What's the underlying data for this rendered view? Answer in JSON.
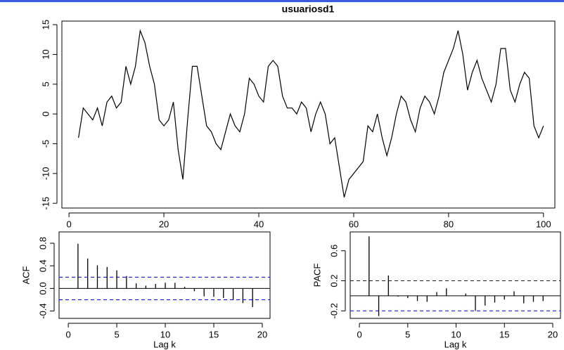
{
  "chart_data": [
    {
      "type": "line",
      "title": "usuariosd1",
      "color": "#000000",
      "x": [
        2,
        3,
        4,
        5,
        6,
        7,
        8,
        9,
        10,
        11,
        12,
        13,
        14,
        15,
        16,
        17,
        18,
        19,
        20,
        21,
        22,
        23,
        24,
        25,
        26,
        27,
        28,
        29,
        30,
        31,
        32,
        33,
        34,
        35,
        36,
        37,
        38,
        39,
        40,
        41,
        42,
        43,
        44,
        45,
        46,
        47,
        48,
        49,
        50,
        51,
        52,
        53,
        54,
        55,
        56,
        57,
        58,
        59,
        60,
        61,
        62,
        63,
        64,
        65,
        66,
        67,
        68,
        69,
        70,
        71,
        72,
        73,
        74,
        75,
        76,
        77,
        78,
        79,
        80,
        81,
        82,
        83,
        84,
        85,
        86,
        87,
        88,
        89,
        90,
        91,
        92,
        93,
        94,
        95,
        96,
        97,
        98,
        99,
        100
      ],
      "values": [
        -4,
        1,
        0,
        -1,
        1,
        -2,
        2,
        3,
        1,
        2,
        8,
        5,
        8,
        14,
        12,
        8,
        5,
        -1,
        -2,
        -1,
        2,
        -6,
        -11,
        -1,
        8,
        8,
        3,
        -2,
        -3,
        -5,
        -6,
        -3,
        0,
        -2,
        -3,
        0,
        6,
        5,
        3,
        2,
        8,
        9,
        8,
        3,
        1,
        1,
        0,
        2,
        1,
        -3,
        0,
        2,
        0,
        -5,
        -4,
        -9,
        -14,
        -11,
        -10,
        -9,
        -8,
        -2,
        -3,
        0,
        -4,
        -7,
        -4,
        0,
        3,
        2,
        -1,
        -3,
        1,
        3,
        2,
        0,
        3,
        7,
        9,
        11,
        14,
        10,
        4,
        7,
        9,
        6,
        4,
        2,
        5,
        11,
        11,
        4,
        2,
        5,
        7,
        6,
        -2,
        -4,
        -2
      ],
      "xlim": [
        -1.5,
        102.4
      ],
      "ylim": [
        -15.8,
        15.6
      ],
      "xticks": [
        0,
        20,
        40,
        60,
        80,
        100
      ],
      "yticks": [
        -15,
        -10,
        -5,
        0,
        5,
        10,
        15
      ]
    },
    {
      "type": "bar",
      "y_label": "ACF",
      "x_label": "Lag k",
      "color": "#000000",
      "bounds_color": "#0000ff",
      "x": [
        1,
        2,
        3,
        4,
        5,
        6,
        7,
        8,
        9,
        10,
        11,
        12,
        13,
        14,
        15,
        16,
        17,
        18,
        19
      ],
      "values": [
        0.79,
        0.53,
        0.41,
        0.38,
        0.32,
        0.22,
        0.09,
        0.05,
        0.08,
        0.1,
        0.1,
        0.03,
        -0.05,
        -0.14,
        -0.15,
        -0.17,
        -0.2,
        -0.26,
        -0.33
      ],
      "confidence_bounds": [
        -0.2,
        0.2
      ],
      "xlim": [
        -0.95,
        20.8
      ],
      "ylim": [
        -0.53,
        1.0
      ],
      "xticks": [
        0,
        5,
        10,
        15,
        20
      ],
      "yticks": [
        -0.4,
        {
          "value": 0,
          "label": "0.0"
        },
        0.4,
        0.8
      ]
    },
    {
      "type": "bar",
      "y_label": "PACF",
      "x_label": "Lag k",
      "color": "#000000",
      "bounds_color": "#0000ff",
      "x": [
        1,
        2,
        3,
        4,
        5,
        6,
        7,
        8,
        9,
        10,
        11,
        12,
        13,
        14,
        15,
        16,
        17,
        18,
        19
      ],
      "values": [
        0.79,
        -0.27,
        0.27,
        -0.01,
        -0.03,
        -0.07,
        -0.08,
        0.05,
        0.1,
        0.0,
        0.03,
        -0.2,
        -0.13,
        -0.09,
        -0.05,
        0.06,
        -0.1,
        -0.08,
        -0.07
      ],
      "confidence_bounds": [
        -0.2,
        0.2
      ],
      "xlim": [
        -0.95,
        20.8
      ],
      "ylim": [
        -0.3,
        0.85
      ],
      "xticks": [
        0,
        5,
        10,
        15,
        20
      ],
      "yticks": [
        -0.2,
        0.2,
        0.6
      ]
    }
  ]
}
